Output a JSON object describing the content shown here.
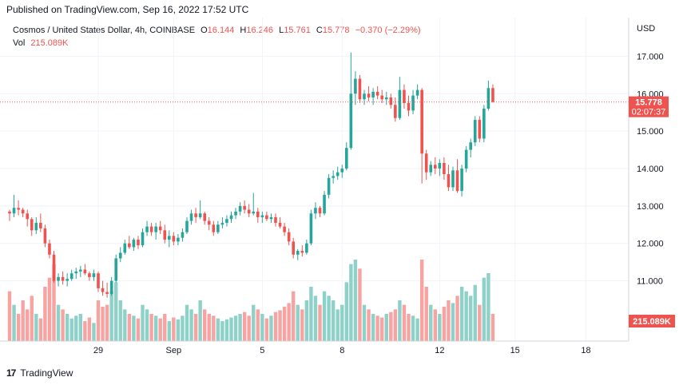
{
  "header": {
    "published": "Published on TradingView.com, Sep 16, 2022 17:52 UTC"
  },
  "legend": {
    "symbol": "Cosmos / United States Dollar, 4h, COINBASE",
    "o_label": "O",
    "o_value": "16.144",
    "h_label": "H",
    "h_value": "16.246",
    "l_label": "L",
    "l_value": "15.761",
    "c_label": "C",
    "c_value": "15.778",
    "change": "−0.370 (−2.29%)",
    "vol_label": "Vol",
    "vol_value": "215.089K"
  },
  "axis": {
    "currency": "USD"
  },
  "price_tag": {
    "price": "15.778",
    "countdown": "02:07:37"
  },
  "volume_tag": "215.089K",
  "footer": {
    "brand": "TradingView",
    "logo": "17"
  },
  "colors": {
    "up": "#26a69a",
    "down": "#ef5350",
    "up_vol": "#8ed1c9",
    "down_vol": "#f6a3a1",
    "grid": "#f0f3fa"
  },
  "chart_data": {
    "type": "candlestick",
    "symbol": "Cosmos / United States Dollar",
    "interval": "4h",
    "ylim": [
      10.5,
      17.5
    ],
    "y_ticks": [
      "17.000",
      "16.000",
      "15.000",
      "14.000",
      "13.000",
      "12.000",
      "11.000"
    ],
    "x_ticks": [
      {
        "label": "29",
        "index": 20
      },
      {
        "label": "Sep",
        "index": 37
      },
      {
        "label": "5",
        "index": 57
      },
      {
        "label": "8",
        "index": 75
      },
      {
        "label": "12",
        "index": 97
      },
      {
        "label": "15",
        "index": 114
      },
      {
        "label": "18",
        "index": 130
      }
    ],
    "last_price": 15.778,
    "candles": [
      [
        12.85,
        12.9,
        12.6,
        12.8,
        55
      ],
      [
        12.8,
        13.3,
        12.7,
        12.95,
        40
      ],
      [
        12.95,
        13.15,
        12.75,
        12.9,
        30
      ],
      [
        12.9,
        12.95,
        12.7,
        12.8,
        45
      ],
      [
        12.8,
        12.9,
        12.45,
        12.65,
        35
      ],
      [
        12.65,
        12.7,
        12.2,
        12.35,
        50
      ],
      [
        12.35,
        12.7,
        12.25,
        12.55,
        30
      ],
      [
        12.55,
        12.8,
        12.3,
        12.4,
        25
      ],
      [
        12.4,
        12.5,
        11.9,
        12.0,
        60
      ],
      [
        12.0,
        12.1,
        11.6,
        11.7,
        70
      ],
      [
        11.7,
        11.8,
        10.95,
        11.0,
        85
      ],
      [
        11.0,
        11.2,
        10.85,
        11.1,
        40
      ],
      [
        11.1,
        11.25,
        10.9,
        11.0,
        35
      ],
      [
        11.0,
        11.2,
        10.85,
        11.05,
        30
      ],
      [
        11.05,
        11.3,
        11.0,
        11.2,
        25
      ],
      [
        11.2,
        11.35,
        11.05,
        11.25,
        28
      ],
      [
        11.25,
        11.4,
        11.1,
        11.3,
        30
      ],
      [
        11.3,
        11.45,
        11.15,
        11.2,
        22
      ],
      [
        11.2,
        11.25,
        11.0,
        11.1,
        26
      ],
      [
        11.1,
        11.3,
        11.0,
        11.2,
        20
      ],
      [
        11.2,
        11.25,
        10.7,
        10.8,
        45
      ],
      [
        10.8,
        11.0,
        10.6,
        10.7,
        38
      ],
      [
        10.7,
        10.95,
        10.55,
        10.65,
        40
      ],
      [
        10.65,
        11.1,
        10.6,
        11.0,
        55
      ],
      [
        11.0,
        11.7,
        10.95,
        11.6,
        65
      ],
      [
        11.6,
        11.9,
        11.5,
        11.75,
        45
      ],
      [
        11.75,
        12.1,
        11.7,
        12.0,
        35
      ],
      [
        12.0,
        12.2,
        11.85,
        11.9,
        30
      ],
      [
        11.9,
        12.15,
        11.8,
        12.1,
        28
      ],
      [
        12.1,
        12.2,
        11.85,
        11.95,
        25
      ],
      [
        11.95,
        12.4,
        11.9,
        12.3,
        40
      ],
      [
        12.3,
        12.6,
        12.2,
        12.45,
        35
      ],
      [
        12.45,
        12.55,
        12.2,
        12.3,
        30
      ],
      [
        12.3,
        12.55,
        12.1,
        12.45,
        28
      ],
      [
        12.45,
        12.6,
        12.25,
        12.35,
        25
      ],
      [
        12.35,
        12.5,
        12.0,
        12.1,
        30
      ],
      [
        12.1,
        12.35,
        11.9,
        12.2,
        22
      ],
      [
        12.2,
        12.3,
        11.95,
        12.05,
        26
      ],
      [
        12.05,
        12.25,
        11.95,
        12.15,
        24
      ],
      [
        12.15,
        12.4,
        12.05,
        12.3,
        28
      ],
      [
        12.3,
        12.7,
        12.25,
        12.6,
        40
      ],
      [
        12.6,
        12.9,
        12.5,
        12.8,
        35
      ],
      [
        12.8,
        12.95,
        12.55,
        12.7,
        30
      ],
      [
        12.7,
        13.15,
        12.65,
        12.8,
        45
      ],
      [
        12.8,
        12.85,
        12.5,
        12.6,
        35
      ],
      [
        12.6,
        12.7,
        12.35,
        12.5,
        30
      ],
      [
        12.5,
        12.6,
        12.2,
        12.3,
        28
      ],
      [
        12.3,
        12.6,
        12.25,
        12.5,
        25
      ],
      [
        12.5,
        12.7,
        12.4,
        12.55,
        22
      ],
      [
        12.55,
        12.75,
        12.45,
        12.65,
        24
      ],
      [
        12.65,
        12.85,
        12.55,
        12.75,
        26
      ],
      [
        12.75,
        12.95,
        12.65,
        12.85,
        28
      ],
      [
        12.85,
        13.1,
        12.75,
        13.0,
        30
      ],
      [
        13.0,
        13.15,
        12.8,
        12.9,
        32
      ],
      [
        12.9,
        13.05,
        12.7,
        12.8,
        28
      ],
      [
        12.8,
        13.35,
        12.75,
        12.85,
        40
      ],
      [
        12.85,
        12.95,
        12.55,
        12.7,
        35
      ],
      [
        12.7,
        12.85,
        12.55,
        12.75,
        30
      ],
      [
        12.75,
        12.85,
        12.6,
        12.65,
        25
      ],
      [
        12.65,
        12.8,
        12.55,
        12.7,
        28
      ],
      [
        12.7,
        12.8,
        12.45,
        12.55,
        32
      ],
      [
        12.55,
        12.7,
        12.4,
        12.45,
        34
      ],
      [
        12.45,
        12.55,
        12.2,
        12.3,
        38
      ],
      [
        12.3,
        12.4,
        11.95,
        12.05,
        42
      ],
      [
        12.05,
        12.15,
        11.6,
        11.7,
        55
      ],
      [
        11.7,
        11.85,
        11.55,
        11.8,
        40
      ],
      [
        11.8,
        11.95,
        11.65,
        11.75,
        35
      ],
      [
        11.75,
        12.1,
        11.7,
        12.0,
        45
      ],
      [
        12.0,
        12.9,
        11.95,
        12.8,
        60
      ],
      [
        12.8,
        13.1,
        12.65,
        12.95,
        50
      ],
      [
        12.95,
        13.0,
        12.7,
        12.8,
        40
      ],
      [
        12.8,
        13.4,
        12.75,
        13.3,
        55
      ],
      [
        13.3,
        13.85,
        13.2,
        13.75,
        50
      ],
      [
        13.75,
        13.95,
        13.6,
        13.8,
        45
      ],
      [
        13.8,
        14.05,
        13.7,
        13.9,
        35
      ],
      [
        13.9,
        14.1,
        13.75,
        14.0,
        40
      ],
      [
        14.0,
        14.7,
        13.95,
        14.55,
        65
      ],
      [
        14.55,
        17.1,
        14.5,
        16.0,
        85
      ],
      [
        16.0,
        16.6,
        15.7,
        16.4,
        90
      ],
      [
        16.4,
        16.5,
        15.75,
        15.85,
        80
      ],
      [
        15.85,
        16.1,
        15.7,
        16.0,
        40
      ],
      [
        16.0,
        16.2,
        15.8,
        15.9,
        35
      ],
      [
        15.9,
        16.15,
        15.7,
        16.05,
        30
      ],
      [
        16.05,
        16.2,
        15.85,
        15.95,
        28
      ],
      [
        15.95,
        16.1,
        15.75,
        15.85,
        26
      ],
      [
        15.85,
        16.05,
        15.7,
        15.9,
        30
      ],
      [
        15.9,
        16.0,
        15.6,
        15.7,
        32
      ],
      [
        15.7,
        15.9,
        15.25,
        15.35,
        35
      ],
      [
        15.35,
        16.45,
        15.3,
        16.1,
        45
      ],
      [
        16.1,
        16.25,
        15.6,
        15.75,
        40
      ],
      [
        15.75,
        15.95,
        15.4,
        15.55,
        30
      ],
      [
        15.55,
        16.1,
        15.45,
        15.95,
        28
      ],
      [
        15.95,
        16.25,
        15.85,
        16.1,
        25
      ],
      [
        16.1,
        16.15,
        13.6,
        14.4,
        90
      ],
      [
        14.4,
        14.5,
        13.7,
        13.9,
        60
      ],
      [
        13.9,
        14.2,
        13.8,
        14.1,
        40
      ],
      [
        14.1,
        14.3,
        13.85,
        14.0,
        35
      ],
      [
        14.0,
        14.25,
        13.8,
        14.15,
        30
      ],
      [
        14.15,
        14.3,
        13.7,
        13.85,
        38
      ],
      [
        13.85,
        14.1,
        13.4,
        13.5,
        45
      ],
      [
        13.5,
        14.05,
        13.4,
        13.95,
        42
      ],
      [
        13.95,
        14.25,
        13.35,
        13.4,
        50
      ],
      [
        13.4,
        14.1,
        13.25,
        14.0,
        60
      ],
      [
        14.0,
        14.6,
        13.9,
        14.5,
        55
      ],
      [
        14.5,
        14.8,
        14.3,
        14.7,
        50
      ],
      [
        14.7,
        15.4,
        14.6,
        15.3,
        62
      ],
      [
        15.3,
        15.4,
        14.7,
        14.8,
        40
      ],
      [
        14.8,
        15.7,
        14.7,
        15.6,
        70
      ],
      [
        15.6,
        16.35,
        15.55,
        16.15,
        75
      ],
      [
        16.15,
        16.25,
        15.76,
        15.78,
        30
      ]
    ]
  }
}
